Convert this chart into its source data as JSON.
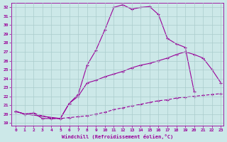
{
  "xlabel": "Windchill (Refroidissement éolien,°C)",
  "background_color": "#cce8e8",
  "line_color": "#990099",
  "grid_color": "#aacccc",
  "xlim": [
    -0.5,
    23.3
  ],
  "ylim": [
    18.7,
    32.5
  ],
  "yticks": [
    19,
    20,
    21,
    22,
    23,
    24,
    25,
    26,
    27,
    28,
    29,
    30,
    31,
    32
  ],
  "xticks": [
    0,
    1,
    2,
    3,
    4,
    5,
    6,
    7,
    8,
    9,
    10,
    11,
    12,
    13,
    14,
    15,
    16,
    17,
    18,
    19,
    20,
    21,
    22,
    23
  ],
  "curve1_x": [
    0,
    1,
    2,
    3,
    4,
    5,
    6,
    7,
    8,
    9,
    10,
    11,
    12,
    13,
    14,
    15,
    16,
    17,
    18,
    19,
    20
  ],
  "curve1_y": [
    20.3,
    20.0,
    20.1,
    19.5,
    19.5,
    19.5,
    21.2,
    22.2,
    25.5,
    27.2,
    29.5,
    32.0,
    32.3,
    31.8,
    32.0,
    32.1,
    31.2,
    28.5,
    27.9,
    27.5,
    22.5
  ],
  "curve2_x": [
    0,
    1,
    5,
    6,
    7,
    8,
    9,
    10,
    11,
    12,
    13,
    14,
    15,
    16,
    17,
    18,
    19,
    20,
    21,
    22,
    23
  ],
  "curve2_y": [
    20.3,
    20.0,
    19.5,
    21.2,
    22.0,
    23.5,
    23.8,
    24.2,
    24.5,
    24.8,
    25.2,
    25.5,
    25.7,
    26.0,
    26.3,
    26.7,
    27.0,
    26.7,
    26.3,
    25.0,
    23.5
  ],
  "curve3_x": [
    0,
    1,
    2,
    3,
    4,
    5,
    6,
    7,
    8,
    9,
    10,
    11,
    12,
    13,
    14,
    15,
    16,
    17,
    18,
    19,
    20,
    21,
    22,
    23
  ],
  "curve3_y": [
    20.3,
    20.0,
    20.1,
    19.8,
    19.5,
    19.5,
    19.6,
    19.7,
    19.8,
    20.0,
    20.2,
    20.5,
    20.7,
    20.9,
    21.1,
    21.3,
    21.5,
    21.6,
    21.8,
    21.9,
    22.0,
    22.1,
    22.2,
    22.3
  ]
}
